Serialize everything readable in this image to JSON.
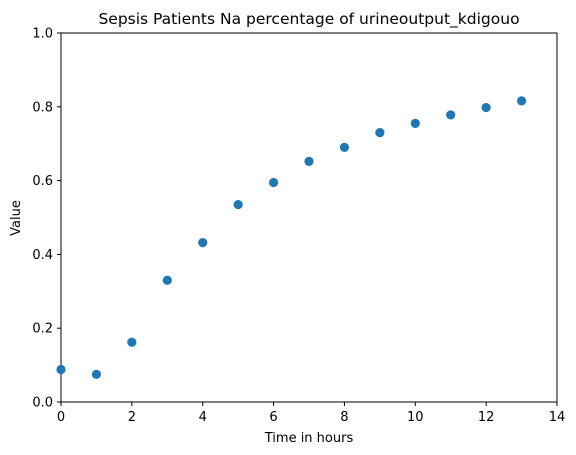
{
  "chart_data": {
    "type": "scatter",
    "title": "Sepsis Patients Na percentage of urineoutput_kdigouo",
    "xlabel": "Time in hours",
    "ylabel": "Value",
    "xlim": [
      0,
      14
    ],
    "ylim": [
      0,
      1.0
    ],
    "xticks": [
      0,
      2,
      4,
      6,
      8,
      10,
      12,
      14
    ],
    "xtick_labels": [
      "0",
      "2",
      "4",
      "6",
      "8",
      "10",
      "12",
      "14"
    ],
    "yticks": [
      0,
      0.2,
      0.4,
      0.6,
      0.8,
      1.0
    ],
    "ytick_labels": [
      "0.0",
      "0.2",
      "0.4",
      "0.6",
      "0.8",
      "1.0"
    ],
    "grid": false,
    "series": [
      {
        "color": "#1f77b4",
        "x": [
          0,
          1,
          2,
          3,
          4,
          5,
          6,
          7,
          8,
          9,
          10,
          11,
          12,
          13
        ],
        "y": [
          0.088,
          0.075,
          0.162,
          0.33,
          0.432,
          0.535,
          0.595,
          0.652,
          0.69,
          0.73,
          0.755,
          0.778,
          0.798,
          0.816
        ]
      }
    ]
  }
}
